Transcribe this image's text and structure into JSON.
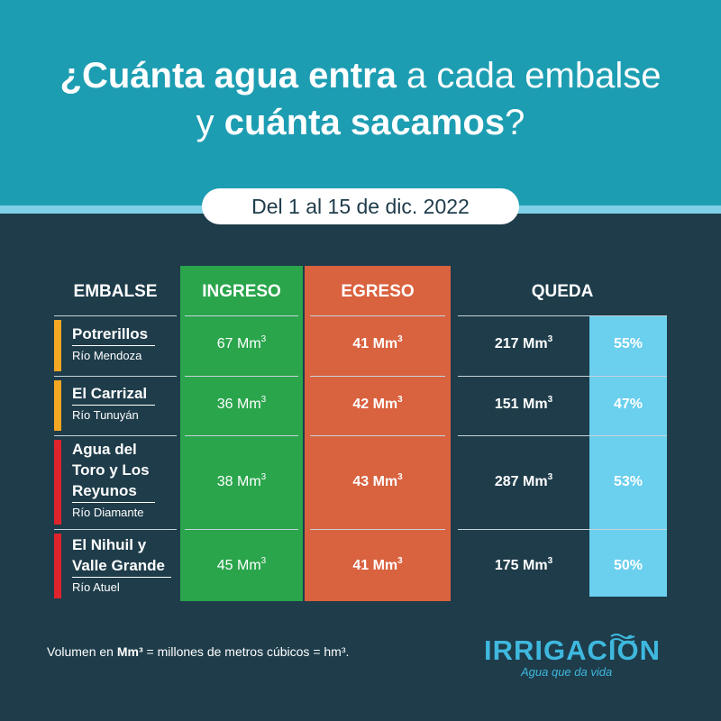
{
  "title": {
    "l1_b1": "¿Cuánta agua entra",
    "l1_n1": " a cada embalse",
    "l2_n1": "y ",
    "l2_b1": "cuánta sacamos",
    "l2_n2": "?"
  },
  "date_range": "Del 1 al 15 de dic. 2022",
  "headers": {
    "embalse": "EMBALSE",
    "ingreso": "INGRESO",
    "egreso": "EGRESO",
    "queda": "QUEDA"
  },
  "unit": "Mm",
  "unit_sup": "3",
  "rows": [
    {
      "name": "Potrerillos",
      "river": "Río Mendoza",
      "ingreso": "67",
      "egreso": "41",
      "queda": "217",
      "pct": "55%",
      "bar_color": "#f5a623"
    },
    {
      "name": "El Carrizal",
      "river": "Río Tunuyán",
      "ingreso": "36",
      "egreso": "42",
      "queda": "151",
      "pct": "47%",
      "bar_color": "#f5a623"
    },
    {
      "name_l1": "Agua del",
      "name_l2": "Toro y Los",
      "name_l3": "Reyunos",
      "river": "Río Diamante",
      "ingreso": "38",
      "egreso": "43",
      "queda": "287",
      "pct": "53%",
      "bar_color": "#e0242b"
    },
    {
      "name_l1": "El Nihuil y",
      "name_l2": "Valle Grande",
      "river": "Río Atuel",
      "ingreso": "45",
      "egreso": "41",
      "queda": "175",
      "pct": "50%",
      "bar_color": "#e0242b"
    }
  ],
  "footnote": {
    "p1": "Volumen en ",
    "b1": "Mm³",
    "p2": " = millones de metros cúbicos = hm³."
  },
  "logo": {
    "name": "IRRIGACIÓN",
    "tagline": "Agua que da vida",
    "icon": "water-wave-icon",
    "color": "#3fb8de"
  }
}
